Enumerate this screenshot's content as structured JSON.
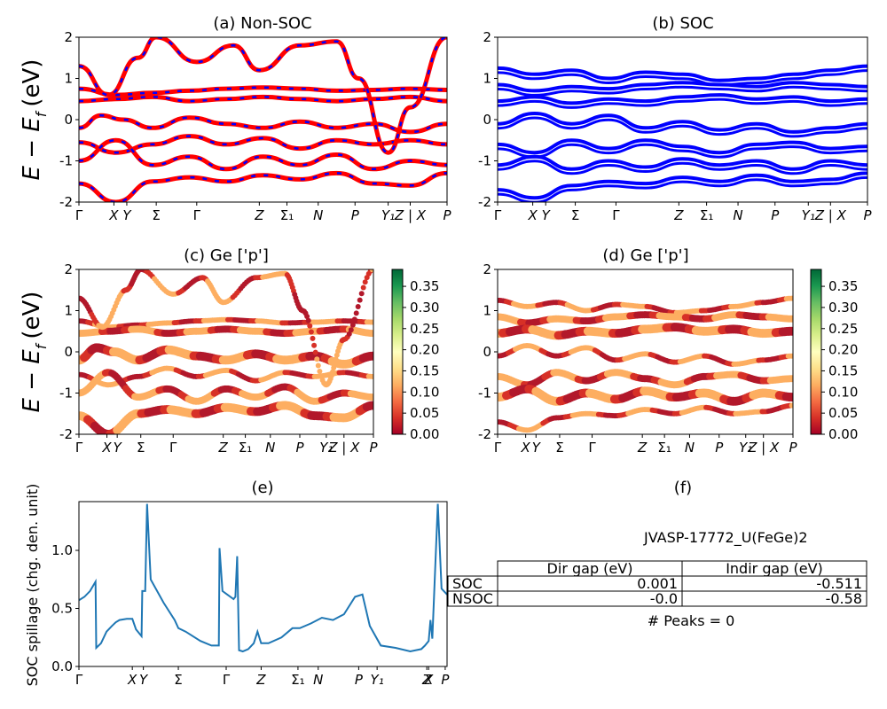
{
  "panels": {
    "a": {
      "title": "(a) Non-SOC"
    },
    "b": {
      "title": "(b) SOC"
    },
    "c": {
      "title": "(c)  Ge ['p']"
    },
    "d": {
      "title": "(d) Ge ['p']"
    },
    "e": {
      "title": "(e)"
    },
    "f": {
      "title": "(f)"
    }
  },
  "axis_labels": {
    "band_ylabel_a": "E − E",
    "band_ylabel_c": "E − E",
    "band_ylabel_sub": "f",
    "band_ylabel_tail": "(eV)",
    "spillage_ylabel": "SOC spillage (chg. den. unit)"
  },
  "colors": {
    "nonsoc_band": "#ff0000",
    "nonsoc_dash": "#0000ff",
    "soc_band": "#0000ff",
    "spillage_line": "#1f77b4"
  },
  "colorbar": {
    "ticks": [
      "0.00",
      "0.05",
      "0.10",
      "0.15",
      "0.20",
      "0.25",
      "0.30",
      "0.35"
    ],
    "max": 0.39,
    "colormap": "RdYlGn"
  },
  "info": {
    "material_id": "JVASP-17772_U(FeGe)2",
    "table": {
      "header": [
        "",
        "Dir gap (eV)",
        "Indir gap (eV)"
      ],
      "rows": [
        [
          "SOC",
          "0.001",
          "-0.511"
        ],
        [
          "NSOC",
          "-0.0",
          "-0.58"
        ]
      ]
    },
    "peaks": "# Peaks = 0"
  },
  "chart_data": [
    {
      "type": "line",
      "panel": "(a) Non-SOC",
      "ylabel": "E − E_f (eV)",
      "ylim": [
        -2,
        2
      ],
      "yticks": [
        -2,
        -1,
        0,
        1,
        2
      ],
      "xlim": [
        0,
        10
      ],
      "xticks": [
        {
          "x": 0,
          "label": "Γ"
        },
        {
          "x": 0.95,
          "label": "X"
        },
        {
          "x": 1.3,
          "label": "Y"
        },
        {
          "x": 2.1,
          "label": "Σ"
        },
        {
          "x": 3.2,
          "label": "Γ"
        },
        {
          "x": 4.9,
          "label": "Z"
        },
        {
          "x": 5.65,
          "label": "Σ₁"
        },
        {
          "x": 6.5,
          "label": "N"
        },
        {
          "x": 7.5,
          "label": "P"
        },
        {
          "x": 8.4,
          "label": "Y₁"
        },
        {
          "x": 9.0,
          "label": "Z | X"
        },
        {
          "x": 10,
          "label": "P"
        }
      ],
      "series": [
        {
          "values": [
            [
              0,
              0.75
            ],
            [
              1,
              0.6
            ],
            [
              2,
              0.65
            ],
            [
              3,
              0.7
            ],
            [
              4,
              0.75
            ],
            [
              5,
              0.78
            ],
            [
              6,
              0.75
            ],
            [
              7,
              0.7
            ],
            [
              8,
              0.72
            ],
            [
              9,
              0.75
            ],
            [
              10,
              0.72
            ]
          ]
        },
        {
          "values": [
            [
              0,
              0.45
            ],
            [
              1,
              0.5
            ],
            [
              2,
              0.55
            ],
            [
              3,
              0.45
            ],
            [
              4,
              0.5
            ],
            [
              5,
              0.55
            ],
            [
              6,
              0.5
            ],
            [
              7,
              0.45
            ],
            [
              8,
              0.5
            ],
            [
              9,
              0.55
            ],
            [
              10,
              0.45
            ]
          ]
        },
        {
          "values": [
            [
              0,
              -0.2
            ],
            [
              0.6,
              0.1
            ],
            [
              1.2,
              0.0
            ],
            [
              2,
              -0.2
            ],
            [
              3,
              0.05
            ],
            [
              4,
              -0.1
            ],
            [
              5,
              -0.2
            ],
            [
              6,
              -0.05
            ],
            [
              7,
              -0.2
            ],
            [
              8,
              -0.1
            ],
            [
              9,
              -0.3
            ],
            [
              10,
              -0.1
            ]
          ]
        },
        {
          "values": [
            [
              0,
              -0.55
            ],
            [
              1,
              -0.8
            ],
            [
              2,
              -0.6
            ],
            [
              3,
              -0.4
            ],
            [
              4,
              -0.6
            ],
            [
              5,
              -0.45
            ],
            [
              6,
              -0.7
            ],
            [
              7,
              -0.5
            ],
            [
              8,
              -0.6
            ],
            [
              9,
              -0.5
            ],
            [
              10,
              -0.6
            ]
          ]
        },
        {
          "values": [
            [
              0,
              -1.0
            ],
            [
              1,
              -0.5
            ],
            [
              2,
              -1.1
            ],
            [
              3,
              -0.9
            ],
            [
              4,
              -1.2
            ],
            [
              5,
              -0.9
            ],
            [
              6,
              -1.1
            ],
            [
              7,
              -0.85
            ],
            [
              8,
              -1.2
            ],
            [
              9,
              -1.0
            ],
            [
              10,
              -1.1
            ]
          ]
        },
        {
          "values": [
            [
              0,
              -1.55
            ],
            [
              1,
              -2.0
            ],
            [
              2,
              -1.5
            ],
            [
              3,
              -1.4
            ],
            [
              4,
              -1.5
            ],
            [
              5,
              -1.35
            ],
            [
              6,
              -1.45
            ],
            [
              7,
              -1.3
            ],
            [
              8,
              -1.55
            ],
            [
              9,
              -1.6
            ],
            [
              10,
              -1.3
            ]
          ]
        },
        {
          "values": [
            [
              0,
              1.3
            ],
            [
              0.8,
              0.6
            ],
            [
              1.6,
              1.5
            ],
            [
              2.1,
              2.0
            ],
            [
              3.2,
              1.4
            ],
            [
              4.2,
              1.8
            ],
            [
              4.9,
              1.2
            ],
            [
              6,
              1.8
            ],
            [
              7,
              1.9
            ],
            [
              7.6,
              1.0
            ],
            [
              8.4,
              -0.8
            ],
            [
              9,
              0.3
            ],
            [
              10,
              2.0
            ]
          ]
        }
      ]
    },
    {
      "type": "line",
      "panel": "(b) SOC",
      "ylim": [
        -2,
        2
      ],
      "yticks": [
        -2,
        -1,
        0,
        1,
        2
      ],
      "xlim": [
        0,
        10
      ],
      "series": [
        {
          "values": [
            [
              0,
              1.25
            ],
            [
              1,
              1.1
            ],
            [
              2,
              1.2
            ],
            [
              3,
              1.0
            ],
            [
              4,
              1.15
            ],
            [
              5,
              1.1
            ],
            [
              6,
              0.95
            ],
            [
              7,
              1.0
            ],
            [
              8,
              1.1
            ],
            [
              9,
              1.2
            ],
            [
              10,
              1.3
            ]
          ]
        },
        {
          "values": [
            [
              0,
              0.85
            ],
            [
              1,
              0.7
            ],
            [
              2,
              0.8
            ],
            [
              3,
              0.75
            ],
            [
              4,
              0.85
            ],
            [
              5,
              0.9
            ],
            [
              6,
              0.85
            ],
            [
              7,
              0.8
            ],
            [
              8,
              0.9
            ],
            [
              9,
              0.85
            ],
            [
              10,
              0.8
            ]
          ]
        },
        {
          "values": [
            [
              0,
              0.45
            ],
            [
              1,
              0.55
            ],
            [
              2,
              0.4
            ],
            [
              3,
              0.5
            ],
            [
              4,
              0.45
            ],
            [
              5,
              0.55
            ],
            [
              6,
              0.6
            ],
            [
              7,
              0.5
            ],
            [
              8,
              0.55
            ],
            [
              9,
              0.45
            ],
            [
              10,
              0.5
            ]
          ]
        },
        {
          "values": [
            [
              0,
              -0.1
            ],
            [
              1,
              0.15
            ],
            [
              2,
              -0.1
            ],
            [
              3,
              0.1
            ],
            [
              4,
              -0.2
            ],
            [
              5,
              -0.05
            ],
            [
              6,
              -0.25
            ],
            [
              7,
              -0.1
            ],
            [
              8,
              -0.3
            ],
            [
              9,
              -0.2
            ],
            [
              10,
              -0.1
            ]
          ]
        },
        {
          "values": [
            [
              0,
              -0.6
            ],
            [
              1,
              -0.8
            ],
            [
              2,
              -0.5
            ],
            [
              3,
              -0.7
            ],
            [
              4,
              -0.5
            ],
            [
              5,
              -0.65
            ],
            [
              6,
              -0.8
            ],
            [
              7,
              -0.6
            ],
            [
              8,
              -0.55
            ],
            [
              9,
              -0.7
            ],
            [
              10,
              -0.65
            ]
          ]
        },
        {
          "values": [
            [
              0,
              -1.1
            ],
            [
              1,
              -0.9
            ],
            [
              2,
              -1.2
            ],
            [
              3,
              -1.0
            ],
            [
              4,
              -1.15
            ],
            [
              5,
              -0.95
            ],
            [
              6,
              -1.1
            ],
            [
              7,
              -1.0
            ],
            [
              8,
              -1.2
            ],
            [
              9,
              -1.0
            ],
            [
              10,
              -1.1
            ]
          ]
        },
        {
          "values": [
            [
              0,
              -1.7
            ],
            [
              1,
              -1.9
            ],
            [
              2,
              -1.6
            ],
            [
              3,
              -1.5
            ],
            [
              4,
              -1.55
            ],
            [
              5,
              -1.4
            ],
            [
              6,
              -1.5
            ],
            [
              7,
              -1.35
            ],
            [
              8,
              -1.5
            ],
            [
              9,
              -1.45
            ],
            [
              10,
              -1.3
            ]
          ]
        }
      ]
    },
    {
      "type": "scatter",
      "panel": "(c)  Ge ['p']",
      "ylabel": "E − E_f (eV)",
      "ylim": [
        -2,
        2
      ],
      "xlim": [
        0,
        10
      ],
      "colorbar_range": [
        0,
        0.39
      ]
    },
    {
      "type": "scatter",
      "panel": "(d) Ge ['p']",
      "ylim": [
        -2,
        2
      ],
      "xlim": [
        0,
        10
      ],
      "colorbar_range": [
        0,
        0.39
      ]
    },
    {
      "type": "line",
      "panel": "(e)",
      "ylabel": "SOC spillage (chg. den. unit)",
      "ylim": [
        0,
        1.42
      ],
      "yticks": [
        0.0,
        0.5,
        1.0
      ],
      "xlim": [
        0,
        10
      ],
      "xticks": [
        {
          "x": 0,
          "label": "Γ"
        },
        {
          "x": 1.45,
          "label": "X"
        },
        {
          "x": 1.75,
          "label": "Y"
        },
        {
          "x": 2.7,
          "label": "Σ"
        },
        {
          "x": 4.0,
          "label": "Γ"
        },
        {
          "x": 4.95,
          "label": "Z"
        },
        {
          "x": 5.95,
          "label": "Σ₁"
        },
        {
          "x": 6.5,
          "label": "N"
        },
        {
          "x": 7.6,
          "label": "P"
        },
        {
          "x": 8.1,
          "label": "Y₁"
        },
        {
          "x": 9.45,
          "label": "Z"
        },
        {
          "x": 9.5,
          "label": "X"
        },
        {
          "x": 9.95,
          "label": "P"
        }
      ],
      "x": [
        0,
        0.15,
        0.3,
        0.45,
        0.47,
        0.6,
        0.75,
        0.9,
        1.0,
        1.1,
        1.3,
        1.45,
        1.55,
        1.7,
        1.72,
        1.8,
        1.85,
        1.95,
        2.3,
        2.6,
        2.7,
        2.9,
        3.3,
        3.6,
        3.8,
        3.82,
        3.9,
        4.2,
        4.25,
        4.3,
        4.35,
        4.45,
        4.6,
        4.75,
        4.85,
        4.95,
        5.15,
        5.5,
        5.8,
        6.0,
        6.3,
        6.6,
        6.9,
        7.2,
        7.5,
        7.7,
        7.9,
        8.2,
        8.6,
        9.0,
        9.3,
        9.4,
        9.5,
        9.55,
        9.6,
        9.75,
        9.85,
        10.0
      ],
      "values": [
        0.57,
        0.6,
        0.65,
        0.73,
        0.16,
        0.2,
        0.3,
        0.35,
        0.38,
        0.4,
        0.41,
        0.41,
        0.32,
        0.26,
        0.65,
        0.65,
        1.4,
        0.75,
        0.55,
        0.4,
        0.33,
        0.3,
        0.22,
        0.18,
        0.18,
        1.02,
        0.65,
        0.58,
        0.6,
        0.95,
        0.14,
        0.13,
        0.15,
        0.2,
        0.3,
        0.2,
        0.2,
        0.25,
        0.33,
        0.33,
        0.37,
        0.42,
        0.4,
        0.45,
        0.6,
        0.62,
        0.35,
        0.18,
        0.16,
        0.13,
        0.15,
        0.18,
        0.22,
        0.4,
        0.24,
        1.4,
        0.67,
        0.62
      ]
    }
  ]
}
